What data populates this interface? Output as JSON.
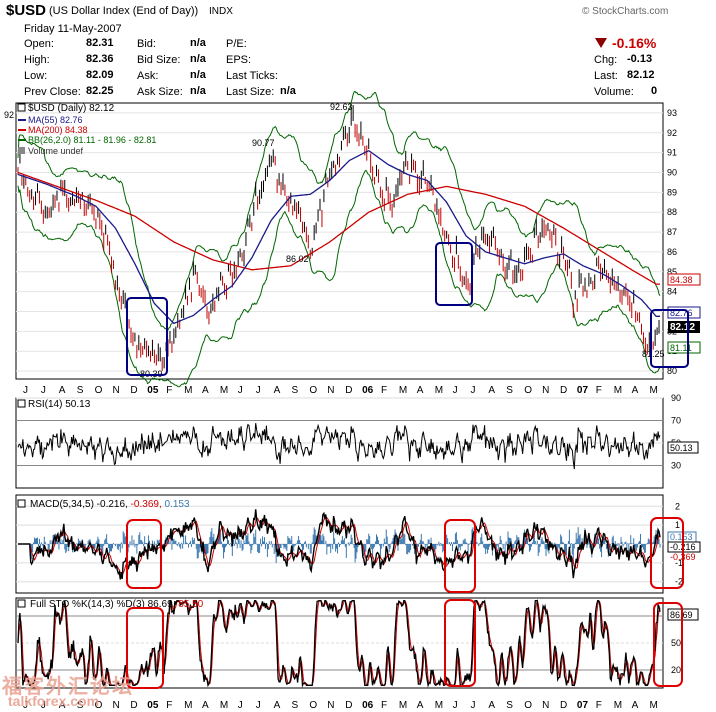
{
  "header": {
    "symbol": "$USD",
    "name": "(US Dollar Index (End of Day))",
    "exchange": "INDX",
    "credit": "© StockCharts.com",
    "date_line": "Friday  11-May-2007",
    "labels": {
      "open": "Open:",
      "high": "High:",
      "low": "Low:",
      "prev_close": "Prev Close:",
      "bid": "Bid:",
      "bid_size": "Bid Size:",
      "ask": "Ask:",
      "ask_size": "Ask Size:",
      "pe": "P/E:",
      "eps": "EPS:",
      "last_ticks": "Last Ticks:",
      "last_size": "Last Size:",
      "chg": "Chg:",
      "last": "Last:",
      "volume": "Volume:"
    },
    "values": {
      "open": "82.31",
      "high": "82.36",
      "low": "82.09",
      "prev_close": "82.25",
      "bid": "n/a",
      "bid_size": "n/a",
      "ask": "n/a",
      "ask_size": "n/a",
      "last_size": "n/a",
      "pct_change": "-0.16%",
      "chg": "-0.13",
      "last": "82.12",
      "volume": "0"
    },
    "down_color": "#cc0000"
  },
  "chart_data": [
    {
      "type": "line",
      "panel": "price",
      "title": "$USD (Daily) 82.12",
      "legend": [
        "MA(55) 82.76",
        "MA(200) 84.38",
        "BB(26,2.0) 81.11 - 81.96 - 82.81",
        "Volume undef"
      ],
      "legend_colors": [
        "#1a1a8c",
        "#cc0000",
        "#006600",
        "#555555"
      ],
      "y_ticks": [
        80,
        81,
        82,
        83,
        84,
        85,
        86,
        87,
        88,
        89,
        90,
        91,
        92,
        93
      ],
      "ylim": [
        79.6,
        93.5
      ],
      "annotations": [
        "92",
        "90.77",
        "92.63",
        "86.02",
        "80.39",
        "81.25"
      ],
      "price_labels": [
        "82.76",
        "84.38",
        "82.12",
        "81.11"
      ],
      "series": [
        {
          "name": "Price",
          "keypoints": [
            [
              0,
              90.4
            ],
            [
              14,
              88.5
            ],
            [
              18,
              88.9
            ],
            [
              30,
              87.5
            ],
            [
              45,
              89.0
            ],
            [
              60,
              88.7
            ],
            [
              72,
              88.5
            ],
            [
              82,
              87.5
            ],
            [
              95,
              86.3
            ],
            [
              100,
              84.5
            ],
            [
              110,
              83.0
            ],
            [
              118,
              81.8
            ],
            [
              128,
              81.1
            ],
            [
              140,
              80.6
            ],
            [
              148,
              80.39
            ],
            [
              155,
              81.5
            ],
            [
              165,
              82.5
            ],
            [
              175,
              83.8
            ],
            [
              182,
              85.0
            ],
            [
              188,
              83.8
            ],
            [
              195,
              82.6
            ],
            [
              205,
              84.0
            ],
            [
              215,
              84.7
            ],
            [
              225,
              85.3
            ],
            [
              235,
              86.8
            ],
            [
              245,
              88.7
            ],
            [
              255,
              90.1
            ],
            [
              262,
              90.77
            ],
            [
              270,
              89.3
            ],
            [
              280,
              88.5
            ],
            [
              290,
              88.0
            ],
            [
              300,
              86.02
            ],
            [
              310,
              88.0
            ],
            [
              318,
              89.5
            ],
            [
              328,
              90.5
            ],
            [
              335,
              91.4
            ],
            [
              342,
              92.63
            ],
            [
              352,
              91.8
            ],
            [
              360,
              90.9
            ],
            [
              368,
              89.7
            ],
            [
              376,
              88.9
            ],
            [
              384,
              88.5
            ],
            [
              390,
              89.6
            ],
            [
              398,
              90.7
            ],
            [
              408,
              89.9
            ],
            [
              420,
              89.3
            ],
            [
              428,
              88.3
            ],
            [
              438,
              86.6
            ],
            [
              448,
              86.0
            ],
            [
              455,
              85.2
            ],
            [
              462,
              84.5
            ],
            [
              470,
              86.3
            ],
            [
              478,
              86.9
            ],
            [
              485,
              86.5
            ],
            [
              495,
              85.8
            ],
            [
              505,
              85.3
            ],
            [
              515,
              85.0
            ],
            [
              525,
              86.0
            ],
            [
              535,
              87.0
            ],
            [
              540,
              87.3
            ],
            [
              550,
              86.5
            ],
            [
              560,
              85.7
            ],
            [
              566,
              84.9
            ],
            [
              570,
              83.5
            ],
            [
              578,
              84.5
            ],
            [
              586,
              84.0
            ],
            [
              594,
              84.8
            ],
            [
              602,
              85.0
            ],
            [
              610,
              84.6
            ],
            [
              618,
              83.9
            ],
            [
              626,
              83.5
            ],
            [
              634,
              83.0
            ],
            [
              642,
              81.8
            ],
            [
              648,
              81.25
            ],
            [
              654,
              82.12
            ]
          ]
        },
        {
          "name": "MA(55)",
          "keypoints": [
            [
              0,
              89.9
            ],
            [
              30,
              89.4
            ],
            [
              60,
              88.8
            ],
            [
              80,
              88.3
            ],
            [
              100,
              87.2
            ],
            [
              120,
              85.4
            ],
            [
              140,
              83.4
            ],
            [
              160,
              82.4
            ],
            [
              180,
              82.8
            ],
            [
              200,
              83.6
            ],
            [
              220,
              84.3
            ],
            [
              240,
              85.7
            ],
            [
              260,
              87.6
            ],
            [
              280,
              88.8
            ],
            [
              300,
              88.9
            ],
            [
              320,
              89.6
            ],
            [
              340,
              90.6
            ],
            [
              360,
              91.1
            ],
            [
              380,
              90.4
            ],
            [
              400,
              89.9
            ],
            [
              420,
              89.6
            ],
            [
              440,
              88.5
            ],
            [
              460,
              86.8
            ],
            [
              480,
              86.0
            ],
            [
              500,
              85.7
            ],
            [
              520,
              85.4
            ],
            [
              540,
              85.7
            ],
            [
              560,
              85.9
            ],
            [
              580,
              85.3
            ],
            [
              600,
              84.9
            ],
            [
              620,
              84.3
            ],
            [
              640,
              83.6
            ],
            [
              655,
              82.76
            ]
          ]
        },
        {
          "name": "MA(200)",
          "keypoints": [
            [
              0,
              90.0
            ],
            [
              40,
              89.3
            ],
            [
              80,
              88.6
            ],
            [
              120,
              87.8
            ],
            [
              160,
              86.5
            ],
            [
              200,
              85.6
            ],
            [
              240,
              85.1
            ],
            [
              280,
              85.3
            ],
            [
              320,
              86.5
            ],
            [
              360,
              88.0
            ],
            [
              400,
              88.9
            ],
            [
              440,
              89.3
            ],
            [
              480,
              88.9
            ],
            [
              520,
              88.3
            ],
            [
              560,
              87.2
            ],
            [
              600,
              86.0
            ],
            [
              630,
              85.1
            ],
            [
              655,
              84.38
            ]
          ]
        }
      ]
    },
    {
      "type": "line",
      "panel": "rsi",
      "title": "RSI(14) 50.13",
      "y_ticks": [
        30,
        50,
        70,
        90
      ],
      "ylim": [
        10,
        90
      ],
      "last_value": "50.13"
    },
    {
      "type": "line",
      "panel": "macd",
      "title": "MACD(5,34,5) -0.216, -0.369, 0.153",
      "title_parts": [
        "MACD(5,34,5) -0.216,",
        " -0.369,",
        " 0.153"
      ],
      "y_ticks": [
        -2,
        -1,
        0,
        1,
        2
      ],
      "ylim": [
        -2.6,
        2.6
      ],
      "value_labels": [
        "0.153",
        "-0.216",
        "-0.369"
      ]
    },
    {
      "type": "line",
      "panel": "stochastic",
      "title": "Full STO %K(14,3) %D(3) 86.69, 85.50",
      "title_parts": [
        "Full STO %K(14,3) %D(3) 86.69,",
        " 85.50"
      ],
      "y_ticks": [
        20,
        50,
        80
      ],
      "ylim": [
        0,
        100
      ],
      "last_value": "86.69"
    }
  ],
  "x_axis": {
    "labels": [
      "J",
      "J",
      "A",
      "S",
      "O",
      "N",
      "D",
      "05",
      "F",
      "M",
      "A",
      "M",
      "J",
      "J",
      "A",
      "S",
      "O",
      "N",
      "D",
      "06",
      "F",
      "M",
      "A",
      "M",
      "J",
      "J",
      "A",
      "S",
      "O",
      "N",
      "D",
      "07",
      "F",
      "M",
      "A",
      "M"
    ],
    "bold_years": [
      "05",
      "06",
      "07"
    ]
  },
  "watermark": {
    "chinese": "福客外汇论坛",
    "site": "talkforex.com"
  }
}
